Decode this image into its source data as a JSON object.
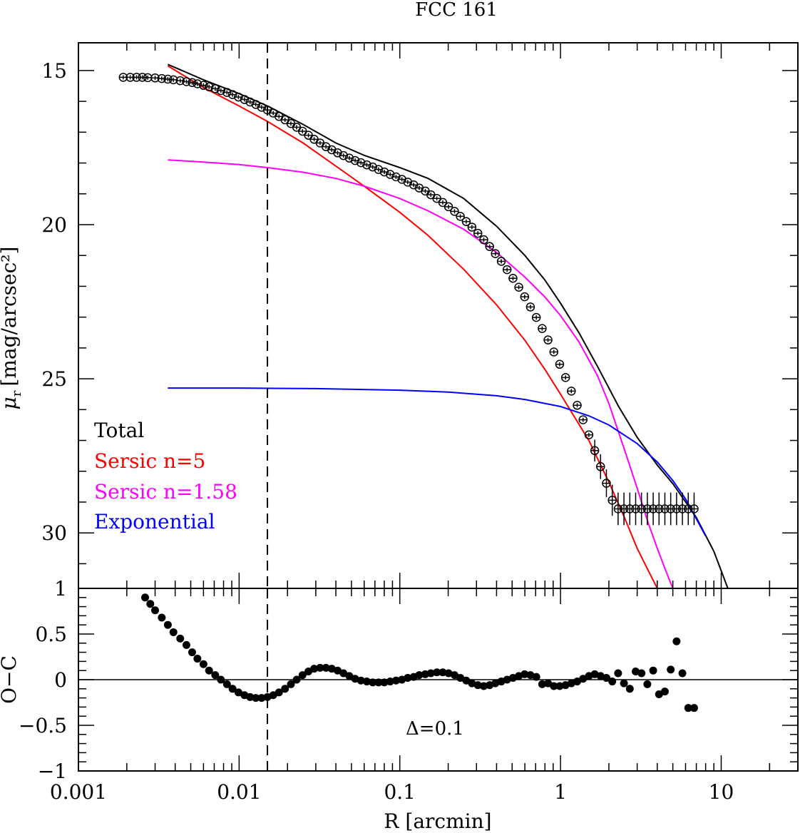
{
  "chart_data": [
    {
      "type": "line",
      "panel": "top",
      "title": "FCC 161",
      "ylabel_sym": "μ",
      "ylabel_sub": "r",
      "ylabel_rest": "[mag/arcsec²]",
      "x_scale": "log",
      "xlim": [
        0.001,
        30
      ],
      "ylim": [
        31.8,
        14.1
      ],
      "y_inverted": true,
      "y_ticks": [
        15,
        20,
        25,
        30
      ],
      "y_tick_labels": [
        "15",
        "20",
        "25",
        "30"
      ],
      "legend_position": "lower-left",
      "legend": [
        {
          "label": "Total",
          "color": "#000000"
        },
        {
          "label": "Sersic n=5",
          "color": "#ff0000"
        },
        {
          "label": "Sersic n=1.58",
          "color": "#ff00ff"
        },
        {
          "label": "Exponential",
          "color": "#0000ff"
        }
      ],
      "vertical_line": {
        "x": 0.015,
        "style": "dashed",
        "color": "#000000"
      },
      "series": [
        {
          "name": "Total",
          "color": "#000000",
          "x": [
            0.0036,
            0.006,
            0.01,
            0.015,
            0.025,
            0.04,
            0.06,
            0.1,
            0.15,
            0.25,
            0.4,
            0.6,
            0.8,
            1.0,
            1.3,
            1.7,
            2.3,
            3.0,
            4.0,
            5.0,
            7.0,
            9.0,
            11.0
          ],
          "y": [
            14.8,
            15.3,
            15.75,
            16.15,
            16.75,
            17.35,
            17.75,
            18.15,
            18.5,
            19.15,
            20.05,
            21.0,
            21.8,
            22.55,
            23.5,
            24.6,
            25.9,
            26.9,
            27.8,
            28.4,
            29.5,
            30.6,
            31.8
          ]
        },
        {
          "name": "Sersic n=5",
          "color": "#ff0000",
          "x": [
            0.0036,
            0.006,
            0.01,
            0.015,
            0.025,
            0.04,
            0.06,
            0.1,
            0.15,
            0.25,
            0.4,
            0.6,
            0.8,
            1.0,
            1.5,
            2.0,
            2.5,
            3.0,
            3.5,
            4.0
          ],
          "y": [
            14.85,
            15.55,
            16.15,
            16.65,
            17.35,
            18.1,
            18.75,
            19.6,
            20.35,
            21.45,
            22.6,
            23.75,
            24.7,
            25.5,
            27.0,
            28.35,
            29.5,
            30.5,
            31.2,
            31.8
          ]
        },
        {
          "name": "Sersic n=1.58",
          "color": "#ff00ff",
          "x": [
            0.0036,
            0.006,
            0.01,
            0.015,
            0.025,
            0.04,
            0.06,
            0.1,
            0.15,
            0.25,
            0.4,
            0.6,
            0.8,
            1.0,
            1.3,
            1.7,
            2.0,
            2.5,
            3.0,
            3.5,
            4.0,
            4.5,
            5.0
          ],
          "y": [
            17.9,
            17.97,
            18.05,
            18.15,
            18.3,
            18.5,
            18.75,
            19.15,
            19.55,
            20.15,
            20.9,
            21.7,
            22.35,
            22.95,
            23.8,
            24.9,
            25.8,
            27.3,
            28.55,
            29.65,
            30.5,
            31.2,
            31.8
          ]
        },
        {
          "name": "Exponential",
          "color": "#0000ff",
          "x": [
            0.0036,
            0.01,
            0.03,
            0.1,
            0.2,
            0.4,
            0.6,
            1.0,
            1.5,
            2.0,
            3.0,
            4.0,
            5.0,
            6.0,
            8.0
          ],
          "y": [
            25.3,
            25.3,
            25.32,
            25.37,
            25.43,
            25.55,
            25.67,
            25.9,
            26.2,
            26.5,
            27.1,
            27.7,
            28.3,
            28.9,
            30.1
          ]
        }
      ],
      "points": {
        "x": [
          0.0019,
          0.0021,
          0.0023,
          0.0025,
          0.0027,
          0.003,
          0.0033,
          0.0036,
          0.0039,
          0.0043,
          0.0047,
          0.0051,
          0.0055,
          0.006,
          0.0065,
          0.0071,
          0.0077,
          0.0084,
          0.0091,
          0.0099,
          0.0108,
          0.0117,
          0.0127,
          0.0138,
          0.015,
          0.0163,
          0.0177,
          0.0193,
          0.021,
          0.0228,
          0.0248,
          0.027,
          0.0293,
          0.0319,
          0.0347,
          0.0377,
          0.041,
          0.0446,
          0.0485,
          0.0527,
          0.0573,
          0.0623,
          0.0678,
          0.0737,
          0.0801,
          0.0871,
          0.0947,
          0.103,
          0.112,
          0.122,
          0.132,
          0.144,
          0.156,
          0.17,
          0.185,
          0.201,
          0.219,
          0.238,
          0.259,
          0.281,
          0.306,
          0.333,
          0.362,
          0.393,
          0.428,
          0.465,
          0.506,
          0.55,
          0.598,
          0.65,
          0.707,
          0.769,
          0.836,
          0.909,
          0.988,
          1.075,
          1.168,
          1.27,
          1.381,
          1.502,
          1.633,
          1.775,
          1.93,
          2.099,
          2.282,
          2.482,
          2.699,
          2.935,
          3.191,
          3.47,
          3.773,
          4.102,
          4.461,
          4.85,
          5.274,
          5.735,
          6.236,
          6.781
        ],
        "y": [
          15.22,
          15.22,
          15.22,
          15.22,
          15.23,
          15.24,
          15.26,
          15.28,
          15.3,
          15.33,
          15.36,
          15.39,
          15.43,
          15.48,
          15.53,
          15.59,
          15.65,
          15.71,
          15.78,
          15.86,
          15.94,
          16.02,
          16.1,
          16.19,
          16.28,
          16.38,
          16.49,
          16.6,
          16.72,
          16.84,
          16.97,
          17.1,
          17.23,
          17.35,
          17.47,
          17.57,
          17.67,
          17.76,
          17.84,
          17.92,
          17.99,
          18.06,
          18.13,
          18.21,
          18.29,
          18.37,
          18.45,
          18.53,
          18.62,
          18.71,
          18.81,
          18.91,
          19.03,
          19.15,
          19.28,
          19.42,
          19.57,
          19.73,
          19.9,
          20.08,
          20.28,
          20.49,
          20.71,
          20.94,
          21.19,
          21.46,
          21.74,
          22.03,
          22.34,
          22.67,
          23.01,
          23.37,
          23.74,
          24.13,
          24.53,
          24.96,
          25.4,
          25.86,
          26.33,
          26.82,
          27.33,
          27.85,
          28.39,
          28.94,
          29.22,
          29.22,
          29.22,
          29.22,
          29.22,
          29.22,
          29.22,
          29.22,
          29.22,
          29.22,
          29.22,
          29.22,
          29.22,
          29.22
        ],
        "marker": "open-circle-with-errorbar"
      }
    },
    {
      "type": "scatter",
      "panel": "bottom",
      "xlabel": "R [arcmin]",
      "ylabel": "O−C",
      "x_scale": "log",
      "xlim": [
        0.001,
        30
      ],
      "ylim": [
        -1,
        1
      ],
      "x_ticks": [
        0.001,
        0.01,
        0.1,
        1,
        10
      ],
      "x_tick_labels": [
        "0.001",
        "0.01",
        "0.1",
        "1",
        "10"
      ],
      "y_ticks": [
        -1,
        -0.5,
        0,
        0.5,
        1
      ],
      "y_tick_labels": [
        "−1",
        "−0.5",
        "0",
        "0.5",
        "1"
      ],
      "annotation": "Δ=0.1",
      "reference_line": 0,
      "vertical_line": {
        "x": 0.015,
        "style": "dashed",
        "color": "#000000"
      },
      "points": {
        "marker": "filled-circle",
        "x": [
          0.0026,
          0.0028,
          0.003,
          0.0033,
          0.0036,
          0.0039,
          0.0043,
          0.0047,
          0.0051,
          0.0055,
          0.006,
          0.0065,
          0.0071,
          0.0077,
          0.0084,
          0.0091,
          0.0099,
          0.0108,
          0.0117,
          0.0127,
          0.0138,
          0.015,
          0.0163,
          0.0177,
          0.0193,
          0.021,
          0.0228,
          0.0248,
          0.027,
          0.0293,
          0.0319,
          0.0347,
          0.0377,
          0.041,
          0.0446,
          0.0485,
          0.0527,
          0.0573,
          0.0623,
          0.0678,
          0.0737,
          0.0801,
          0.0871,
          0.0947,
          0.103,
          0.112,
          0.122,
          0.132,
          0.144,
          0.156,
          0.17,
          0.185,
          0.201,
          0.219,
          0.238,
          0.259,
          0.281,
          0.306,
          0.333,
          0.362,
          0.393,
          0.428,
          0.465,
          0.506,
          0.55,
          0.598,
          0.65,
          0.707,
          0.769,
          0.836,
          0.909,
          0.988,
          1.075,
          1.168,
          1.27,
          1.381,
          1.502,
          1.633,
          1.775,
          1.93,
          2.099,
          2.282,
          2.482,
          2.699,
          2.935,
          3.191,
          3.47,
          3.773,
          4.102,
          4.461,
          4.85,
          5.274,
          5.735,
          6.236,
          6.781
        ],
        "y": [
          0.9,
          0.83,
          0.76,
          0.68,
          0.6,
          0.52,
          0.45,
          0.38,
          0.3,
          0.23,
          0.17,
          0.1,
          0.05,
          0.0,
          -0.05,
          -0.1,
          -0.14,
          -0.17,
          -0.19,
          -0.2,
          -0.2,
          -0.19,
          -0.17,
          -0.14,
          -0.1,
          -0.05,
          0.0,
          0.05,
          0.09,
          0.12,
          0.13,
          0.13,
          0.12,
          0.1,
          0.07,
          0.04,
          0.01,
          -0.01,
          -0.02,
          -0.03,
          -0.03,
          -0.03,
          -0.02,
          -0.01,
          0.0,
          0.02,
          0.03,
          0.05,
          0.06,
          0.07,
          0.08,
          0.08,
          0.07,
          0.05,
          0.02,
          -0.01,
          -0.04,
          -0.06,
          -0.07,
          -0.06,
          -0.04,
          -0.02,
          0.0,
          0.02,
          0.04,
          0.06,
          0.05,
          0.03,
          -0.05,
          -0.04,
          -0.07,
          -0.07,
          -0.06,
          -0.04,
          -0.02,
          0.01,
          0.04,
          0.06,
          0.04,
          0.02,
          -0.02,
          0.07,
          -0.04,
          -0.1,
          0.09,
          0.07,
          -0.05,
          0.1,
          -0.16,
          -0.13,
          0.11,
          0.42,
          0.07,
          -0.31,
          -0.31
        ]
      }
    }
  ]
}
